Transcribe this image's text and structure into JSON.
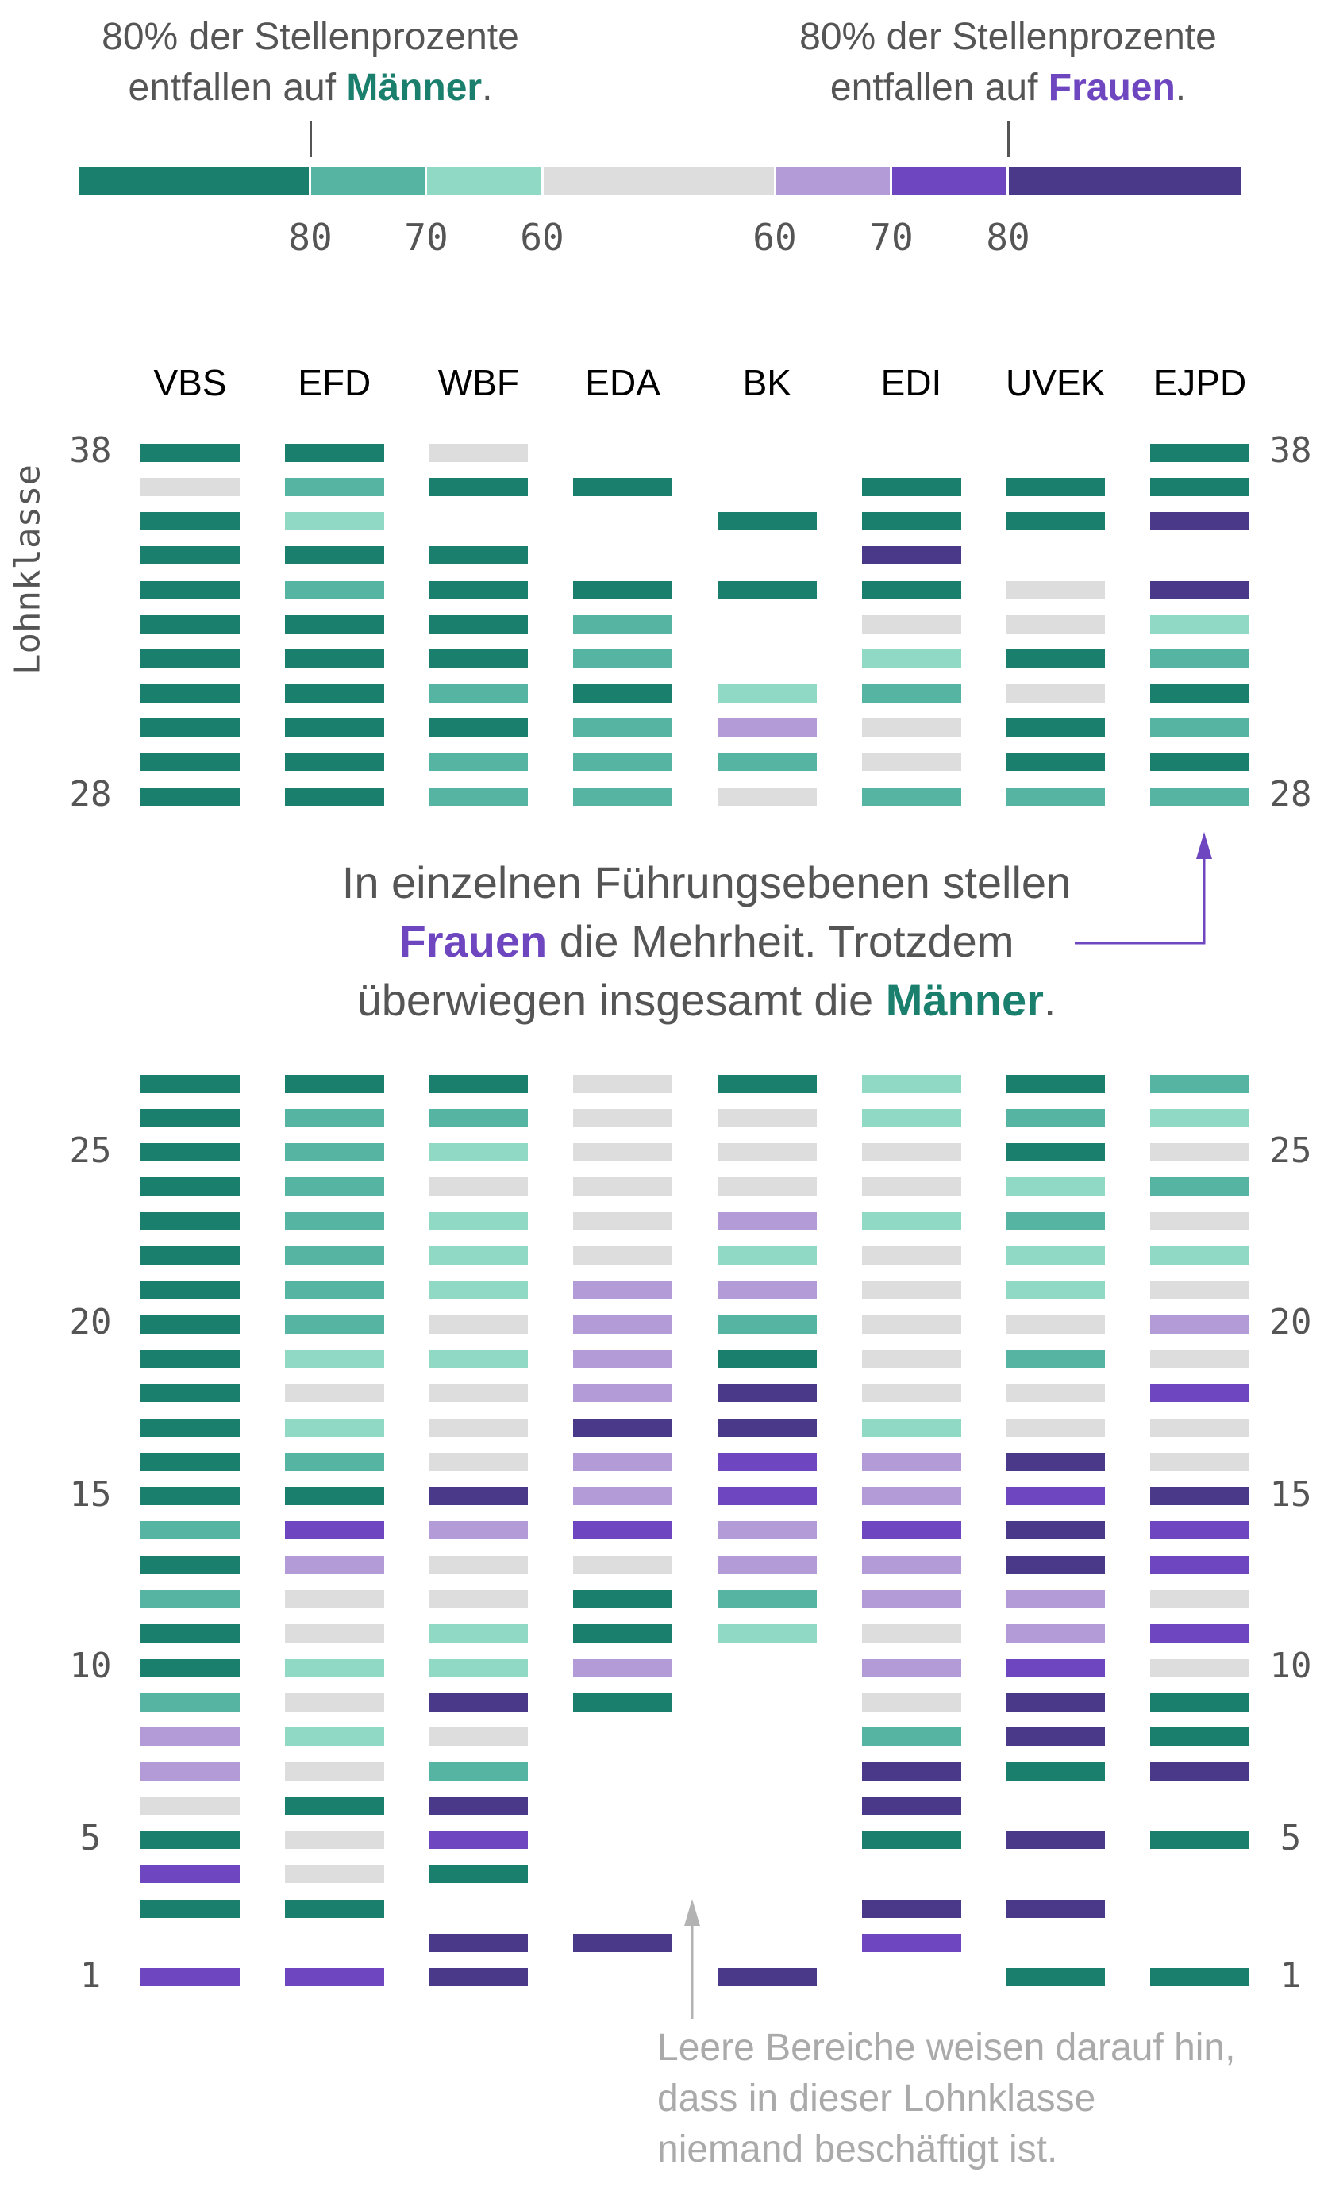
{
  "legend": {
    "left_text": {
      "line1": "80% der Stellenprozente",
      "line2_pre": "entfallen auf ",
      "line2_emph": "Männer",
      "line2_post": "."
    },
    "right_text": {
      "line1": "80% der Stellenprozente",
      "line2_pre": "entfallen auf ",
      "line2_emph": "Frauen",
      "line2_post": "."
    },
    "ticks": [
      "80",
      "70",
      "60",
      "60",
      "70",
      "80"
    ]
  },
  "annotation_main": {
    "line1": "In einzelnen Führungsebenen stellen",
    "line2_emph": "Frauen",
    "line2_post": " die Mehrheit. Trotzdem",
    "line3_pre": "überwiegen insgesamt die ",
    "line3_emph": "Männer",
    "line3_post": "."
  },
  "annotation_empty": {
    "line1": "Leere Bereiche weisen darauf hin,",
    "line2": "dass in dieser Lohnklasse",
    "line3": "niemand beschäftigt ist."
  },
  "chart_data": {
    "type": "heatmap",
    "ylabel": "Lohnklasse",
    "x_categories": [
      "VBS",
      "EFD",
      "WBF",
      "EDA",
      "BK",
      "EDI",
      "UVEK",
      "EJPD"
    ],
    "y_ticks_top": [
      "38",
      "28"
    ],
    "y_ticks_bottom": [
      "25",
      "20",
      "15",
      "10",
      "5",
      "1"
    ],
    "y_levels_top": [
      38,
      28
    ],
    "y_levels_bottom": [
      27,
      1
    ],
    "codes": {
      "A": {
        "meaning": "≥80% Männer",
        "color": "#1b7f6e"
      },
      "B": {
        "meaning": "70–80% Männer",
        "color": "#55b5a2"
      },
      "C": {
        "meaning": "60–70% Männer",
        "color": "#8fd9c5"
      },
      "N": {
        "meaning": "ausgeglichen (<60%)",
        "color": "#dddddd"
      },
      "D": {
        "meaning": "60–70% Frauen",
        "color": "#b29bd6"
      },
      "E": {
        "meaning": "70–80% Frauen",
        "color": "#6e46c0"
      },
      "F": {
        "meaning": "≥80% Frauen",
        "color": "#4a3888"
      },
      "_": {
        "meaning": "niemand beschäftigt",
        "color": null
      }
    },
    "series_note": "top = Lohnklasse 38→28, bottom = Lohnklasse 27→1",
    "series": [
      {
        "name": "VBS",
        "top": "ANAAAAAAAAA",
        "bottom": "AAAAAAAAAAAAABABAABDDNAEA_E"
      },
      {
        "name": "EFD",
        "top": "ABCABAAAAAA",
        "bottom": "ABBBBBBBCNCBAEDNNCNCNANNA_E"
      },
      {
        "name": "WBF",
        "top": "NA_AAAABABB",
        "bottom": "ABCNCCCNCNNNFDNNCCFNBFEA_FF"
      },
      {
        "name": "EDA",
        "top": "_A__ABBABBB",
        "bottom": "NNNNNNDDDDFDDENAADA______F_"
      },
      {
        "name": "BK",
        "top": "__A_A__CDBN",
        "bottom": "ANNNDCDBAFFEEDDBC_________F"
      },
      {
        "name": "EDI",
        "top": "_AAFANCBNNB",
        "bottom": "CCNNCNNNNNCDDEDDNDNBFFA_FE_"
      },
      {
        "name": "UVEK",
        "top": "_AA_NNANAAB",
        "bottom": "ABACBCCNBNNFEFFDDEFFA_F_F_A"
      },
      {
        "name": "EJPD",
        "top": "AAF_FCBABAB",
        "bottom": "BCNBNCNDNENNFEENENAAF_A___A"
      }
    ]
  }
}
